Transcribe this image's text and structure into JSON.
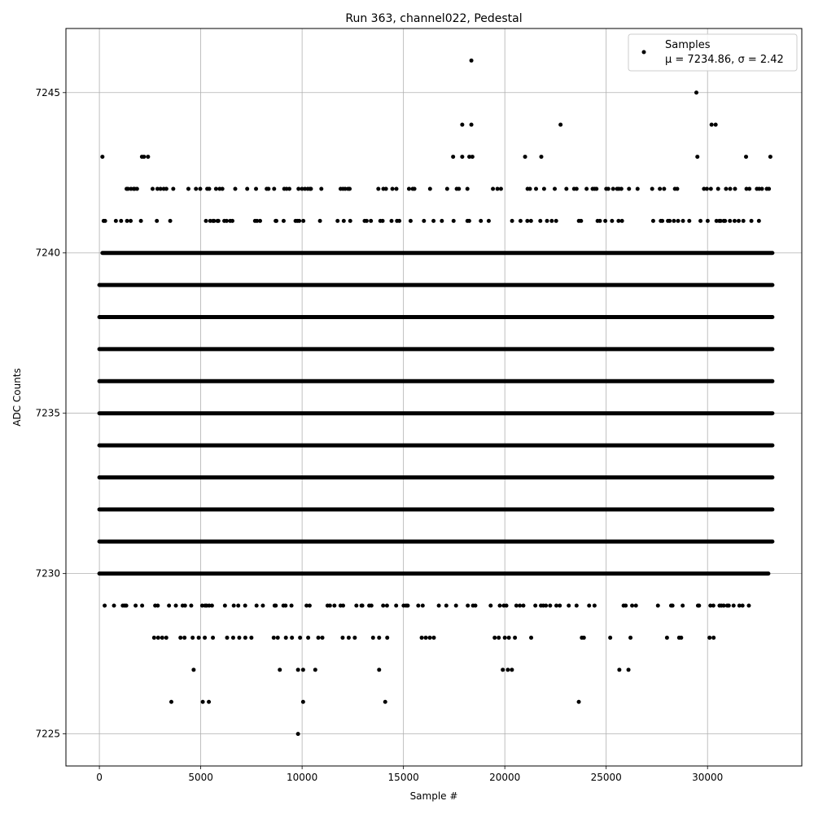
{
  "chart_data": {
    "type": "scatter",
    "title": "Run 363, channel022, Pedestal",
    "xlabel": "Sample #",
    "ylabel": "ADC Counts",
    "xlim": [
      -1650,
      34650
    ],
    "ylim": [
      7224,
      7247
    ],
    "xticks": [
      0,
      5000,
      10000,
      15000,
      20000,
      25000,
      30000
    ],
    "yticks": [
      7225,
      7230,
      7235,
      7240,
      7245
    ],
    "grid": true,
    "legend_position": "top-right",
    "colors": {
      "marker": "#000000",
      "grid": "#b0b0b0",
      "frame": "#000000"
    },
    "n_samples": 33200,
    "series": [
      {
        "name": "Samples",
        "stats_label": "μ = 7234.86, σ = 2.42",
        "dense_levels": [
          {
            "y": 7231,
            "x_range": [
              0,
              33200
            ]
          },
          {
            "y": 7232,
            "x_range": [
              0,
              33200
            ]
          },
          {
            "y": 7233,
            "x_range": [
              0,
              33200
            ]
          },
          {
            "y": 7234,
            "x_range": [
              0,
              33200
            ]
          },
          {
            "y": 7235,
            "x_range": [
              0,
              33200
            ]
          },
          {
            "y": 7236,
            "x_range": [
              0,
              33200
            ]
          },
          {
            "y": 7237,
            "x_range": [
              0,
              33200
            ]
          },
          {
            "y": 7238,
            "x_range": [
              0,
              33200
            ]
          },
          {
            "y": 7239,
            "x_range": [
              0,
              33200
            ]
          },
          {
            "y": 7240,
            "x_range": [
              150,
              33200
            ]
          },
          {
            "y": 7230,
            "x_range": [
              0,
              33000
            ]
          }
        ],
        "sparse_points": [
          {
            "x": 9800,
            "y": 7225
          },
          {
            "x": 3550,
            "y": 7226
          },
          {
            "x": 5100,
            "y": 7226
          },
          {
            "x": 5400,
            "y": 7226
          },
          {
            "x": 10050,
            "y": 7226
          },
          {
            "x": 14100,
            "y": 7226
          },
          {
            "x": 23650,
            "y": 7226
          },
          {
            "x": 4650,
            "y": 7227
          },
          {
            "x": 8900,
            "y": 7227
          },
          {
            "x": 9800,
            "y": 7227
          },
          {
            "x": 10050,
            "y": 7227
          },
          {
            "x": 10650,
            "y": 7227
          },
          {
            "x": 13800,
            "y": 7227
          },
          {
            "x": 19900,
            "y": 7227
          },
          {
            "x": 20150,
            "y": 7227
          },
          {
            "x": 20350,
            "y": 7227
          },
          {
            "x": 25650,
            "y": 7227
          },
          {
            "x": 26100,
            "y": 7227
          },
          {
            "x": 2700,
            "y": 7228
          },
          {
            "x": 2900,
            "y": 7228
          },
          {
            "x": 3100,
            "y": 7228
          },
          {
            "x": 3300,
            "y": 7228
          },
          {
            "x": 4000,
            "y": 7228
          },
          {
            "x": 4200,
            "y": 7228
          },
          {
            "x": 4600,
            "y": 7228
          },
          {
            "x": 4900,
            "y": 7228
          },
          {
            "x": 5200,
            "y": 7228
          },
          {
            "x": 5600,
            "y": 7228
          },
          {
            "x": 6300,
            "y": 7228
          },
          {
            "x": 6600,
            "y": 7228
          },
          {
            "x": 6900,
            "y": 7228
          },
          {
            "x": 7200,
            "y": 7228
          },
          {
            "x": 7500,
            "y": 7228
          },
          {
            "x": 8600,
            "y": 7228
          },
          {
            "x": 8800,
            "y": 7228
          },
          {
            "x": 9200,
            "y": 7228
          },
          {
            "x": 9500,
            "y": 7228
          },
          {
            "x": 9900,
            "y": 7228
          },
          {
            "x": 10300,
            "y": 7228
          },
          {
            "x": 10800,
            "y": 7228
          },
          {
            "x": 11000,
            "y": 7228
          },
          {
            "x": 12000,
            "y": 7228
          },
          {
            "x": 12300,
            "y": 7228
          },
          {
            "x": 12600,
            "y": 7228
          },
          {
            "x": 13500,
            "y": 7228
          },
          {
            "x": 13800,
            "y": 7228
          },
          {
            "x": 14200,
            "y": 7228
          },
          {
            "x": 15900,
            "y": 7228
          },
          {
            "x": 16100,
            "y": 7228
          },
          {
            "x": 16300,
            "y": 7228
          },
          {
            "x": 16500,
            "y": 7228
          },
          {
            "x": 19500,
            "y": 7228
          },
          {
            "x": 19700,
            "y": 7228
          },
          {
            "x": 20000,
            "y": 7228
          },
          {
            "x": 20200,
            "y": 7228
          },
          {
            "x": 20500,
            "y": 7228
          },
          {
            "x": 21300,
            "y": 7228
          },
          {
            "x": 23800,
            "y": 7228
          },
          {
            "x": 23900,
            "y": 7228
          },
          {
            "x": 25200,
            "y": 7228
          },
          {
            "x": 26200,
            "y": 7228
          },
          {
            "x": 28000,
            "y": 7228
          },
          {
            "x": 28600,
            "y": 7228
          },
          {
            "x": 28700,
            "y": 7228
          },
          {
            "x": 30100,
            "y": 7228
          },
          {
            "x": 30300,
            "y": 7228
          },
          {
            "x": 2100,
            "y": 7243
          },
          {
            "x": 2200,
            "y": 7243
          },
          {
            "x": 2400,
            "y": 7243
          },
          {
            "x": 150,
            "y": 7243
          },
          {
            "x": 17450,
            "y": 7243
          },
          {
            "x": 17900,
            "y": 7243
          },
          {
            "x": 18250,
            "y": 7243
          },
          {
            "x": 18400,
            "y": 7243
          },
          {
            "x": 21000,
            "y": 7243
          },
          {
            "x": 21800,
            "y": 7243
          },
          {
            "x": 29500,
            "y": 7243
          },
          {
            "x": 31900,
            "y": 7243
          },
          {
            "x": 33100,
            "y": 7243
          },
          {
            "x": 17900,
            "y": 7244
          },
          {
            "x": 18350,
            "y": 7244
          },
          {
            "x": 22750,
            "y": 7244
          },
          {
            "x": 30200,
            "y": 7244
          },
          {
            "x": 30400,
            "y": 7244
          },
          {
            "x": 29450,
            "y": 7245
          },
          {
            "x": 18350,
            "y": 7246
          }
        ],
        "band_levels_sparse": [
          {
            "y": 7229,
            "x_range": [
              100,
              32000
            ],
            "density": 0.35
          },
          {
            "y": 7241,
            "x_range": [
              150,
              33200
            ],
            "density": 0.3
          },
          {
            "y": 7242,
            "x_range": [
              1300,
              33200
            ],
            "density": 0.3
          }
        ]
      }
    ]
  }
}
